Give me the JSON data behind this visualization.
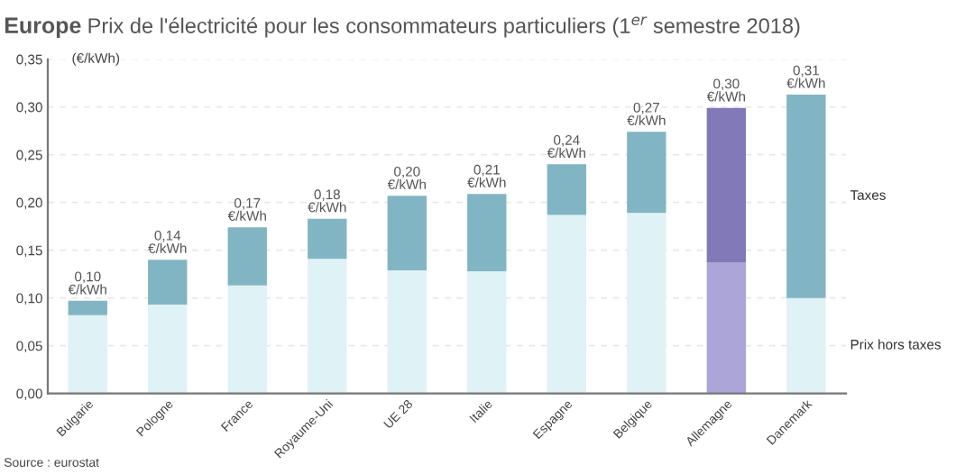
{
  "chart_data": {
    "type": "bar",
    "stacked": true,
    "title": "Europe",
    "subtitle": "Prix de l'électricité pour les consommateurs particuliers (1$^{er}$ semestre 2018)",
    "ylabel": "(€/kWh)",
    "categories": [
      "Bulgarie",
      "Pologne",
      "France",
      "Royaume-Uni",
      "UE 28",
      "Italie",
      "Espagne",
      "Belgique",
      "Allemagne",
      "Danemark"
    ],
    "series": [
      {
        "name": "Prix hors taxes",
        "colors": [
          "#dff2f6",
          "#dff2f6",
          "#dff2f6",
          "#dff2f6",
          "#dff2f6",
          "#dff2f6",
          "#dff2f6",
          "#dff2f6",
          "#aba5d8",
          "#dff2f6"
        ],
        "values": [
          0.082,
          0.093,
          0.113,
          0.141,
          0.129,
          0.128,
          0.187,
          0.189,
          0.137,
          0.1
        ]
      },
      {
        "name": "Taxes",
        "colors": [
          "#82b5c3",
          "#82b5c3",
          "#82b5c3",
          "#82b5c3",
          "#82b5c3",
          "#82b5c3",
          "#82b5c3",
          "#82b5c3",
          "#8279b8",
          "#82b5c3"
        ],
        "values": [
          0.015,
          0.047,
          0.061,
          0.042,
          0.078,
          0.081,
          0.053,
          0.085,
          0.162,
          0.213
        ]
      }
    ],
    "totals": [
      "0,10 €/kWh",
      "0,14 €/kWh",
      "0,17 €/kWh",
      "0,18 €/kWh",
      "0,20 €/kWh",
      "0,21 €/kWh",
      "0,24 €/kWh",
      "0,27 €/kWh",
      "0,30 €/kWh",
      "0,31 €/kWh"
    ],
    "ylim": [
      0,
      0.35
    ],
    "yticks": [
      {
        "value": 0,
        "label": "0,00"
      },
      {
        "value": 0.05,
        "label": "0,05"
      },
      {
        "value": 0.1,
        "label": "0,10"
      },
      {
        "value": 0.15,
        "label": "0,15"
      },
      {
        "value": 0.2,
        "label": "0,20"
      },
      {
        "value": 0.25,
        "label": "0,25"
      },
      {
        "value": 0.3,
        "label": "0,30"
      },
      {
        "value": 0.35,
        "label": "0,35"
      }
    ],
    "grid": "y",
    "annotations": [
      "Source : eurostat"
    ]
  }
}
